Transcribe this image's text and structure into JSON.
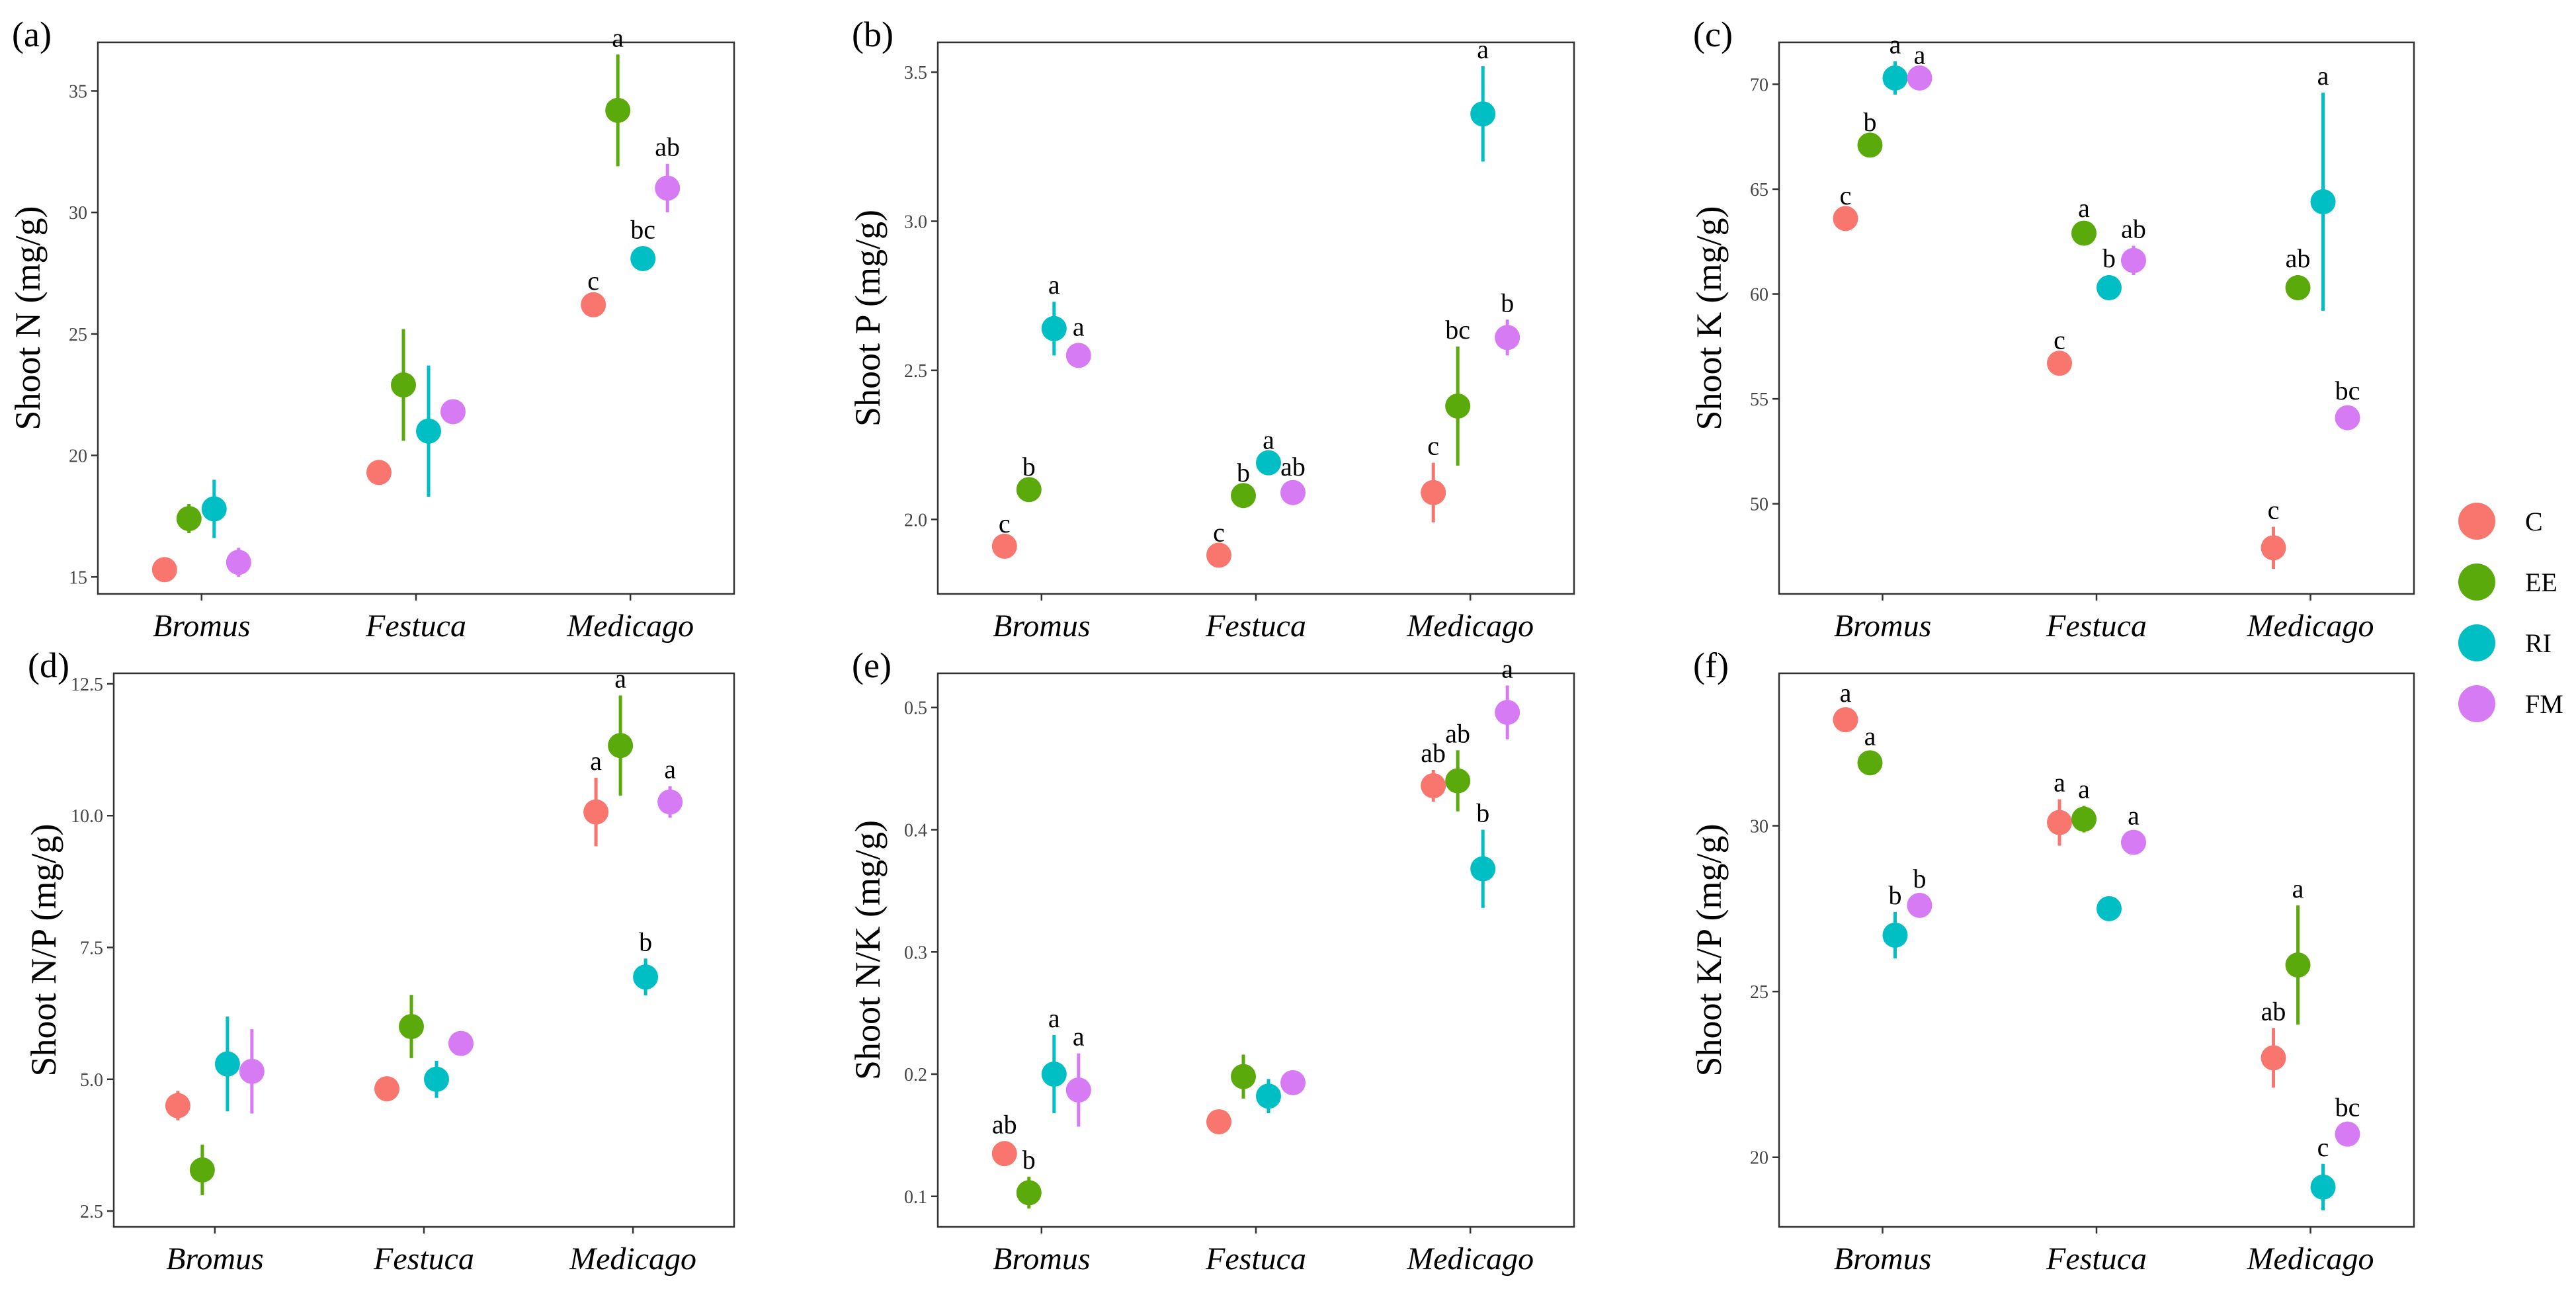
{
  "figure": {
    "legend": [
      {
        "key": "C",
        "label": "C",
        "color": "#F8766D"
      },
      {
        "key": "EE",
        "label": "EE",
        "color": "#5BAA0C"
      },
      {
        "key": "RI",
        "label": "RI",
        "color": "#00BFC4"
      },
      {
        "key": "FM",
        "label": "FM",
        "color": "#D77BF5"
      }
    ]
  },
  "chart_data": [
    {
      "panel": "(a)",
      "type": "scatter",
      "ylabel": "Shoot N (mg/g)",
      "categories": [
        "Bromus",
        "Festuca",
        "Medicago"
      ],
      "ylim": [
        14.3,
        37.0
      ],
      "yticks": [
        {
          "v": 15,
          "label": "15"
        },
        {
          "v": 20,
          "label": "20"
        },
        {
          "v": 25,
          "label": "25"
        },
        {
          "v": 30,
          "label": "30"
        },
        {
          "v": 35,
          "label": "35"
        }
      ],
      "series": [
        {
          "name": "C",
          "mean": [
            15.3,
            19.3,
            26.2
          ],
          "se": [
            0.3,
            0.3,
            0.3
          ],
          "labels": [
            "",
            "",
            "c"
          ]
        },
        {
          "name": "EE",
          "mean": [
            17.4,
            22.9,
            34.2
          ],
          "se": [
            0.6,
            2.3,
            2.3
          ],
          "labels": [
            "",
            "",
            "a"
          ]
        },
        {
          "name": "RI",
          "mean": [
            17.8,
            21.0,
            28.1
          ],
          "se": [
            1.2,
            2.7,
            0.5
          ],
          "labels": [
            "",
            "",
            "bc"
          ]
        },
        {
          "name": "FM",
          "mean": [
            15.6,
            21.8,
            31.0
          ],
          "se": [
            0.6,
            0.4,
            1.0
          ],
          "labels": [
            "",
            "",
            "ab"
          ]
        }
      ]
    },
    {
      "panel": "(b)",
      "type": "scatter",
      "ylabel": "Shoot P (mg/g)",
      "categories": [
        "Bromus",
        "Festuca",
        "Medicago"
      ],
      "ylim": [
        1.75,
        3.6
      ],
      "yticks": [
        {
          "v": 2.0,
          "label": "2.0"
        },
        {
          "v": 2.5,
          "label": "2.5"
        },
        {
          "v": 3.0,
          "label": "3.0"
        },
        {
          "v": 3.5,
          "label": "3.5"
        }
      ],
      "series": [
        {
          "name": "C",
          "mean": [
            1.91,
            1.88,
            2.09
          ],
          "se": [
            0.02,
            0.02,
            0.1
          ],
          "labels": [
            "c",
            "c",
            "c"
          ]
        },
        {
          "name": "EE",
          "mean": [
            2.1,
            2.08,
            2.38
          ],
          "se": [
            0.02,
            0.02,
            0.2
          ],
          "labels": [
            "b",
            "b",
            "bc"
          ]
        },
        {
          "name": "RI",
          "mean": [
            2.64,
            2.19,
            3.36
          ],
          "se": [
            0.09,
            0.02,
            0.16
          ],
          "labels": [
            "a",
            "a",
            "a"
          ]
        },
        {
          "name": "FM",
          "mean": [
            2.55,
            2.09,
            2.61
          ],
          "se": [
            0.04,
            0.03,
            0.06
          ],
          "labels": [
            "a",
            "ab",
            "b"
          ]
        }
      ]
    },
    {
      "panel": "(c)",
      "type": "scatter",
      "ylabel": "Shoot K (mg/g)",
      "categories": [
        "Bromus",
        "Festuca",
        "Medicago"
      ],
      "ylim": [
        45.7,
        72.0
      ],
      "yticks": [
        {
          "v": 50,
          "label": "50"
        },
        {
          "v": 55,
          "label": "55"
        },
        {
          "v": 60,
          "label": "60"
        },
        {
          "v": 65,
          "label": "65"
        },
        {
          "v": 70,
          "label": "70"
        }
      ],
      "series": [
        {
          "name": "C",
          "mean": [
            63.6,
            56.7,
            47.9
          ],
          "se": [
            0.3,
            0.3,
            1.0
          ],
          "labels": [
            "c",
            "c",
            "c"
          ]
        },
        {
          "name": "EE",
          "mean": [
            67.1,
            62.9,
            60.3
          ],
          "se": [
            0.3,
            0.4,
            0.6
          ],
          "labels": [
            "b",
            "a",
            "ab"
          ]
        },
        {
          "name": "RI",
          "mean": [
            70.3,
            60.3,
            64.4
          ],
          "se": [
            0.8,
            0.6,
            5.2
          ],
          "labels": [
            "a",
            "b",
            "a"
          ]
        },
        {
          "name": "FM",
          "mean": [
            70.3,
            61.6,
            54.1
          ],
          "se": [
            0.3,
            0.7,
            0.5
          ],
          "labels": [
            "a",
            "ab",
            "bc"
          ]
        }
      ]
    },
    {
      "panel": "(d)",
      "type": "scatter",
      "ylabel": "Shoot N/P (mg/g)",
      "categories": [
        "Bromus",
        "Festuca",
        "Medicago"
      ],
      "ylim": [
        2.2,
        12.7
      ],
      "yticks": [
        {
          "v": 2.5,
          "label": "2.5"
        },
        {
          "v": 5.0,
          "label": "5.0"
        },
        {
          "v": 7.5,
          "label": "7.5"
        },
        {
          "v": 10.0,
          "label": "10.0"
        },
        {
          "v": 12.5,
          "label": "12.5"
        }
      ],
      "series": [
        {
          "name": "C",
          "mean": [
            4.5,
            4.82,
            10.07
          ],
          "se": [
            0.28,
            0.12,
            0.65
          ],
          "labels": [
            "",
            "",
            "a"
          ]
        },
        {
          "name": "EE",
          "mean": [
            3.28,
            6.0,
            11.33
          ],
          "se": [
            0.48,
            0.6,
            0.95
          ],
          "labels": [
            "",
            "",
            "a"
          ]
        },
        {
          "name": "RI",
          "mean": [
            5.29,
            5.0,
            6.94
          ],
          "se": [
            0.9,
            0.35,
            0.35
          ],
          "labels": [
            "",
            "",
            "b"
          ]
        },
        {
          "name": "FM",
          "mean": [
            5.15,
            5.68,
            10.26
          ],
          "se": [
            0.8,
            0.22,
            0.3
          ],
          "labels": [
            "",
            "",
            "a"
          ]
        }
      ]
    },
    {
      "panel": "(e)",
      "type": "scatter",
      "ylabel": "Shoot N/K (mg/g)",
      "categories": [
        "Bromus",
        "Festuca",
        "Medicago"
      ],
      "ylim": [
        0.075,
        0.528
      ],
      "yticks": [
        {
          "v": 0.1,
          "label": "0.1"
        },
        {
          "v": 0.2,
          "label": "0.2"
        },
        {
          "v": 0.3,
          "label": "0.3"
        },
        {
          "v": 0.4,
          "label": "0.4"
        },
        {
          "v": 0.5,
          "label": "0.5"
        }
      ],
      "series": [
        {
          "name": "C",
          "mean": [
            0.135,
            0.161,
            0.436
          ],
          "se": [
            0.01,
            0.004,
            0.013
          ],
          "labels": [
            "ab",
            "",
            "ab"
          ]
        },
        {
          "name": "EE",
          "mean": [
            0.103,
            0.198,
            0.44
          ],
          "se": [
            0.013,
            0.018,
            0.025
          ],
          "labels": [
            "b",
            "",
            "ab"
          ]
        },
        {
          "name": "RI",
          "mean": [
            0.2,
            0.182,
            0.368
          ],
          "se": [
            0.032,
            0.014,
            0.032
          ],
          "labels": [
            "a",
            "",
            "b"
          ]
        },
        {
          "name": "FM",
          "mean": [
            0.187,
            0.193,
            0.496
          ],
          "se": [
            0.03,
            0.006,
            0.022
          ],
          "labels": [
            "a",
            "",
            "a"
          ]
        }
      ]
    },
    {
      "panel": "(f)",
      "type": "scatter",
      "ylabel": "Shoot K/P (mg/g)",
      "categories": [
        "Bromus",
        "Festuca",
        "Medicago"
      ],
      "ylim": [
        17.9,
        34.6
      ],
      "yticks": [
        {
          "v": 20,
          "label": "20"
        },
        {
          "v": 25,
          "label": "25"
        },
        {
          "v": 30,
          "label": "30"
        }
      ],
      "series": [
        {
          "name": "C",
          "mean": [
            33.2,
            30.1,
            23.0
          ],
          "se": [
            0.3,
            0.7,
            0.9
          ],
          "labels": [
            "a",
            "a",
            "ab"
          ]
        },
        {
          "name": "EE",
          "mean": [
            31.9,
            30.2,
            25.8
          ],
          "se": [
            0.3,
            0.4,
            1.8
          ],
          "labels": [
            "a",
            "a",
            "a"
          ]
        },
        {
          "name": "RI",
          "mean": [
            26.7,
            27.5,
            19.1
          ],
          "se": [
            0.7,
            0.2,
            0.7
          ],
          "labels": [
            "b",
            "",
            "c"
          ]
        },
        {
          "name": "FM",
          "mean": [
            27.6,
            29.5,
            20.7
          ],
          "se": [
            0.3,
            0.3,
            0.3
          ],
          "labels": [
            "b",
            "a",
            "bc"
          ]
        }
      ]
    }
  ]
}
